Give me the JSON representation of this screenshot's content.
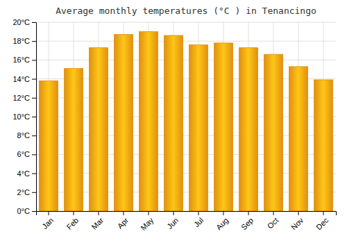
{
  "chart_data": {
    "type": "bar",
    "title": "Average monthly temperatures (°C ) in Tenancingo",
    "categories": [
      "Jan",
      "Feb",
      "Mar",
      "Apr",
      "May",
      "Jun",
      "Jul",
      "Aug",
      "Sep",
      "Oct",
      "Nov",
      "Dec"
    ],
    "values": [
      13.8,
      15.1,
      17.3,
      18.7,
      19.0,
      18.6,
      17.6,
      17.8,
      17.3,
      16.6,
      15.3,
      13.9
    ],
    "color": "#E09010",
    "ylim": [
      0,
      20
    ],
    "yticks": [
      {
        "value": 0,
        "label": "0°C"
      },
      {
        "value": 2,
        "label": "2°C"
      },
      {
        "value": 4,
        "label": "4°C"
      },
      {
        "value": 6,
        "label": "6°C"
      },
      {
        "value": 8,
        "label": "8°C"
      },
      {
        "value": 10,
        "label": "10°C"
      },
      {
        "value": 12,
        "label": "12°C"
      },
      {
        "value": 14,
        "label": "14°C"
      },
      {
        "value": 16,
        "label": "16°C"
      },
      {
        "value": 18,
        "label": "18°C"
      },
      {
        "value": 20,
        "label": "20°C"
      }
    ],
    "grid": true
  }
}
